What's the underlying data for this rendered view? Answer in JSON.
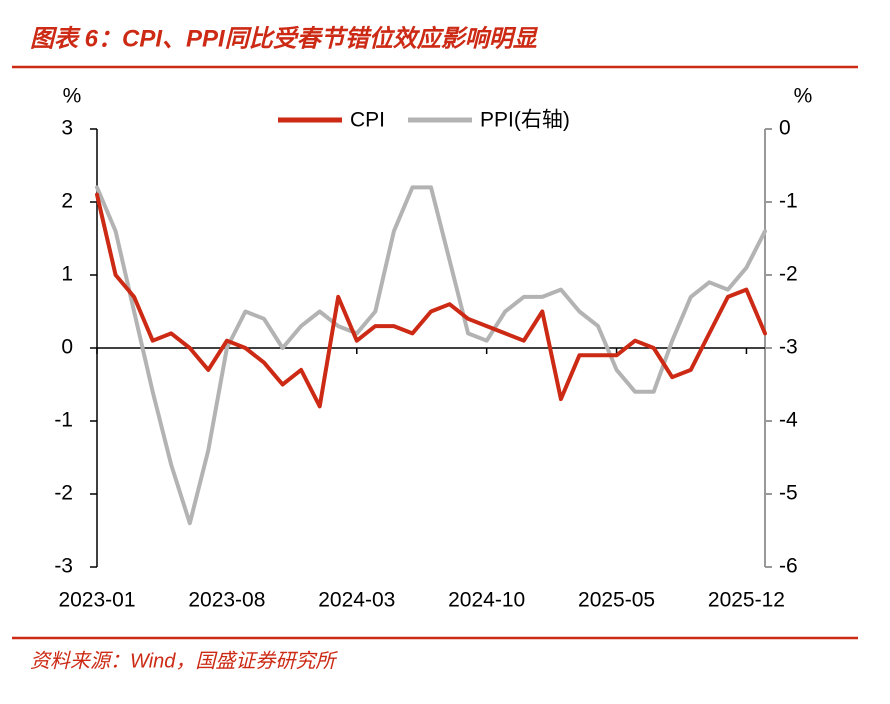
{
  "chart_data": {
    "type": "line",
    "title": "图表 6：CPI、PPI同比受春节错位效应影响明显",
    "source": "资料来源：Wind，国盛证券研究所",
    "ylabel": "%",
    "y2label": "%",
    "categories": [
      "2023-01",
      null,
      null,
      null,
      null,
      null,
      null,
      "2023-08",
      null,
      null,
      null,
      null,
      null,
      null,
      "2024-03",
      null,
      null,
      null,
      null,
      null,
      null,
      "2024-10",
      null,
      null,
      null,
      null,
      null,
      null,
      "2025-05",
      null,
      null,
      null,
      null,
      null,
      null,
      "2025-12",
      null
    ],
    "series": [
      {
        "name": "CPI",
        "color": "#cc2a14",
        "axis": "y",
        "values": [
          2.1,
          1.0,
          0.7,
          0.1,
          0.2,
          0.0,
          -0.3,
          0.1,
          0.0,
          -0.2,
          -0.5,
          -0.3,
          -0.8,
          0.7,
          0.1,
          0.3,
          0.3,
          0.2,
          0.5,
          0.6,
          0.4,
          0.3,
          0.2,
          0.1,
          0.5,
          -0.7,
          -0.1,
          -0.1,
          -0.1,
          0.1,
          0.0,
          -0.4,
          -0.3,
          0.2,
          0.7,
          0.8,
          0.2
        ]
      },
      {
        "name": "PPI(右轴)",
        "color": "#b3b3b3",
        "axis": "y2",
        "values": [
          -0.8,
          -1.4,
          -2.5,
          -3.6,
          -4.6,
          -5.4,
          -4.4,
          -3.0,
          -2.5,
          -2.6,
          -3.0,
          -2.7,
          -2.5,
          -2.7,
          -2.8,
          -2.5,
          -1.4,
          -0.8,
          -0.8,
          -1.8,
          -2.8,
          -2.9,
          -2.5,
          -2.3,
          -2.3,
          -2.2,
          -2.5,
          -2.7,
          -3.3,
          -3.6,
          -3.6,
          -2.9,
          -2.3,
          -2.1,
          -2.2,
          -1.9,
          -1.4
        ]
      }
    ],
    "ylim": [
      -3,
      3
    ],
    "yticks": [
      3,
      2,
      1,
      0,
      -1,
      -2,
      -3
    ],
    "y2lim": [
      -6,
      0
    ],
    "y2ticks": [
      0,
      -1,
      -2,
      -3,
      -4,
      -5,
      -6
    ]
  }
}
